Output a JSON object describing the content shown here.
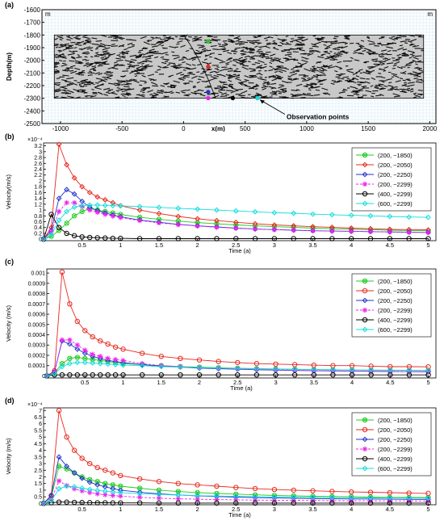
{
  "colors": {
    "green": "#22cc22",
    "red": "#e8281e",
    "blue": "#2233cc",
    "magenta": "#ee22ee",
    "black": "#000000",
    "cyan": "#11dddd",
    "grid": "#cfe8f4",
    "frame": "#000000"
  },
  "panel_a": {
    "label": "(a)",
    "ylabel": "Depth(m)",
    "xlabel": "x(m)",
    "unit_top_left": "m",
    "unit_top_right": "m",
    "annotation": "Observation points",
    "xlim": [
      -1150,
      2050
    ],
    "ylim": [
      -2500,
      -1600
    ],
    "xticks": [
      "-1000",
      "-500",
      "0",
      "500",
      "1000",
      "1500",
      "2000"
    ],
    "xtick_values": [
      -1000,
      -500,
      0,
      500,
      1000,
      1500,
      2000
    ],
    "yticks": [
      "-1600",
      "-1700",
      "-1800",
      "-1900",
      "-2000",
      "-2100",
      "-2200",
      "-2300",
      "-2400",
      "-2500"
    ],
    "ytick_values": [
      -1600,
      -1700,
      -1800,
      -1900,
      -2000,
      -2100,
      -2200,
      -2300,
      -2400,
      -2500
    ],
    "fracture_zone": {
      "x": [
        -1050,
        1950
      ],
      "y": [
        -2300,
        -1800
      ]
    },
    "points": [
      {
        "x": 200,
        "y": -1850,
        "color": "#22cc22"
      },
      {
        "x": 200,
        "y": -2050,
        "color": "#e8281e"
      },
      {
        "x": 200,
        "y": -2250,
        "color": "#2233cc"
      },
      {
        "x": 200,
        "y": -2299,
        "color": "#ee22ee"
      },
      {
        "x": 400,
        "y": -2299,
        "color": "#000000"
      },
      {
        "x": 600,
        "y": -2299,
        "color": "#11dddd"
      }
    ]
  },
  "chart_data": [
    {
      "panel": "(b)",
      "type": "line",
      "ylabel": "Velocity(m/s)",
      "xlabel": "Time (a)",
      "scale_label": "×10⁻⁴",
      "xlim": [
        0,
        5.1
      ],
      "ylim": [
        -0.05,
        3.3
      ],
      "xticks": [
        "0.5",
        "1",
        "1.5",
        "2",
        "2.5",
        "3",
        "3.5",
        "4",
        "4.5",
        "5"
      ],
      "xtick_values": [
        0.5,
        1,
        1.5,
        2,
        2.5,
        3,
        3.5,
        4,
        4.5,
        5
      ],
      "yticks": [
        "0",
        "0.2",
        "0.4",
        "0.6",
        "0.8",
        "1",
        "1.2",
        "1.4",
        "1.6",
        "1.8",
        "2",
        "2.2",
        "2.4",
        "2.6",
        "2.8",
        "3",
        "3.2"
      ],
      "ytick_values": [
        0,
        0.2,
        0.4,
        0.6,
        0.8,
        1,
        1.2,
        1.4,
        1.6,
        1.8,
        2,
        2.2,
        2.4,
        2.6,
        2.8,
        3,
        3.2
      ],
      "x": [
        0.0,
        0.1,
        0.2,
        0.3,
        0.4,
        0.5,
        0.6,
        0.7,
        0.8,
        0.9,
        1.0,
        1.25,
        1.5,
        1.75,
        2.0,
        2.25,
        2.5,
        2.75,
        3.0,
        3.25,
        3.5,
        3.75,
        4.0,
        4.25,
        4.5,
        4.75,
        5.0
      ],
      "legend_position": "top-right",
      "series": [
        {
          "name": "(200, −1850)",
          "color": "#22cc22",
          "marker": "circle-x",
          "dashed": false,
          "values": [
            0.0,
            0.1,
            0.3,
            0.55,
            0.8,
            0.95,
            1.05,
            1.0,
            0.95,
            0.9,
            0.85,
            0.75,
            0.68,
            0.62,
            0.57,
            0.53,
            0.49,
            0.46,
            0.43,
            0.41,
            0.38,
            0.36,
            0.34,
            0.33,
            0.31,
            0.3,
            0.29
          ]
        },
        {
          "name": "(200, −2050)",
          "color": "#e8281e",
          "marker": "diamond",
          "dashed": false,
          "values": [
            0.0,
            0.4,
            3.25,
            2.55,
            2.1,
            1.8,
            1.6,
            1.45,
            1.35,
            1.25,
            1.15,
            1.0,
            0.88,
            0.78,
            0.7,
            0.64,
            0.58,
            0.53,
            0.49,
            0.46,
            0.43,
            0.41,
            0.38,
            0.36,
            0.34,
            0.33,
            0.32
          ]
        },
        {
          "name": "(200, −2250)",
          "color": "#2233cc",
          "marker": "diamond",
          "dashed": false,
          "values": [
            0.0,
            0.3,
            1.4,
            1.7,
            1.55,
            1.3,
            1.1,
            0.98,
            0.9,
            0.83,
            0.77,
            0.66,
            0.58,
            0.51,
            0.46,
            0.42,
            0.38,
            0.35,
            0.33,
            0.31,
            0.29,
            0.28,
            0.27,
            0.26,
            0.25,
            0.24,
            0.23
          ]
        },
        {
          "name": "(200, −2299)",
          "color": "#ee22ee",
          "marker": "star",
          "dashed": true,
          "values": [
            0.0,
            0.25,
            0.95,
            1.25,
            1.25,
            1.12,
            1.0,
            0.92,
            0.85,
            0.79,
            0.74,
            0.64,
            0.56,
            0.5,
            0.45,
            0.41,
            0.38,
            0.35,
            0.33,
            0.31,
            0.29,
            0.28,
            0.27,
            0.26,
            0.25,
            0.24,
            0.23
          ]
        },
        {
          "name": "(400, −2299)",
          "color": "#000000",
          "marker": "circle",
          "dashed": false,
          "values": [
            0.0,
            0.85,
            0.4,
            0.2,
            0.12,
            0.08,
            0.06,
            0.05,
            0.04,
            0.03,
            0.03,
            0.02,
            0.02,
            0.02,
            0.02,
            0.02,
            0.02,
            0.02,
            0.02,
            0.02,
            0.02,
            0.02,
            0.02,
            0.02,
            0.02,
            0.02,
            0.02
          ]
        },
        {
          "name": "(600, −2299)",
          "color": "#11dddd",
          "marker": "diamond",
          "dashed": false,
          "values": [
            0.0,
            0.15,
            0.65,
            0.95,
            1.1,
            1.15,
            1.17,
            1.17,
            1.16,
            1.15,
            1.14,
            1.12,
            1.09,
            1.06,
            1.03,
            1.0,
            0.97,
            0.94,
            0.91,
            0.89,
            0.86,
            0.84,
            0.82,
            0.8,
            0.78,
            0.76,
            0.75
          ]
        }
      ]
    },
    {
      "panel": "(c)",
      "type": "line",
      "ylabel": "Velocity (m/s)",
      "xlabel": "Time (a)",
      "scale_label": "",
      "xlim": [
        0,
        5.1
      ],
      "ylim": [
        -2e-05,
        0.00104
      ],
      "xticks": [
        "0.5",
        "1",
        "1.5",
        "2",
        "2.5",
        "3",
        "3.5",
        "4",
        "4.5",
        "5"
      ],
      "xtick_values": [
        0.5,
        1,
        1.5,
        2,
        2.5,
        3,
        3.5,
        4,
        4.5,
        5
      ],
      "yticks": [
        "0",
        "0.0001",
        "0.0002",
        "0.0003",
        "0.0004",
        "0.0005",
        "0.0006",
        "0.0007",
        "0.0008",
        "0.0009",
        "0.001"
      ],
      "ytick_values": [
        0,
        0.0001,
        0.0002,
        0.0003,
        0.0004,
        0.0005,
        0.0006,
        0.0007,
        0.0008,
        0.0009,
        0.001
      ],
      "x": [
        0.0,
        0.1,
        0.2,
        0.3,
        0.4,
        0.5,
        0.6,
        0.7,
        0.8,
        0.9,
        1.0,
        1.25,
        1.5,
        1.75,
        2.0,
        2.25,
        2.5,
        2.75,
        3.0,
        3.25,
        3.5,
        3.75,
        4.0,
        4.25,
        4.5,
        4.75,
        5.0
      ],
      "legend_position": "top-right",
      "series": [
        {
          "name": "(200, −1850)",
          "color": "#22cc22",
          "marker": "circle-x",
          "dashed": false,
          "values": [
            0.0,
            3e-05,
            0.00012,
            0.00017,
            0.00018,
            0.00017,
            0.00016,
            0.00015,
            0.00014,
            0.00013,
            0.00012,
            0.00011,
            0.0001,
            9e-05,
            8.5e-05,
            8e-05,
            7.5e-05,
            7e-05,
            6.8e-05,
            6.5e-05,
            6.2e-05,
            6e-05,
            5.8e-05,
            5.6e-05,
            5.5e-05,
            5.4e-05,
            5.3e-05
          ]
        },
        {
          "name": "(200, −2050)",
          "color": "#e8281e",
          "marker": "circle",
          "dashed": false,
          "values": [
            0.0,
            5e-05,
            0.00101,
            0.0007,
            0.00053,
            0.00044,
            0.00038,
            0.00034,
            0.00031,
            0.00028,
            0.00026,
            0.00022,
            0.00019,
            0.00017,
            0.000155,
            0.00014,
            0.00013,
            0.00012,
            0.000115,
            0.00011,
            0.000105,
            0.0001,
            0.0001,
            9.5e-05,
            9e-05,
            9e-05,
            8.8e-05
          ]
        },
        {
          "name": "(200, −2250)",
          "color": "#2233cc",
          "marker": "diamond",
          "dashed": false,
          "values": [
            0.0,
            4e-05,
            0.00034,
            0.00031,
            0.00026,
            0.00022,
            0.00019,
            0.00017,
            0.00015,
            0.00014,
            0.00013,
            0.00011,
            9.5e-05,
            8.5e-05,
            7.5e-05,
            7e-05,
            6.5e-05,
            6e-05,
            5.6e-05,
            5.3e-05,
            5e-05,
            4.8e-05,
            4.6e-05,
            4.4e-05,
            4.3e-05,
            4.2e-05,
            4e-05
          ]
        },
        {
          "name": "(200, −2299)",
          "color": "#ee22ee",
          "marker": "star",
          "dashed": true,
          "values": [
            0.0,
            4e-05,
            0.00035,
            0.00035,
            0.0003,
            0.00025,
            0.00021,
            0.00019,
            0.00017,
            0.00016,
            0.00015,
            0.00012,
            0.0001,
            9e-05,
            8e-05,
            7.4e-05,
            6.8e-05,
            6.3e-05,
            5.9e-05,
            5.5e-05,
            5.2e-05,
            5e-05,
            4.8e-05,
            4.6e-05,
            4.4e-05,
            4.3e-05,
            4.2e-05
          ]
        },
        {
          "name": "(400, −2299)",
          "color": "#000000",
          "marker": "circle",
          "dashed": false,
          "values": [
            0.0,
            1e-05,
            1e-05,
            1e-05,
            1e-05,
            1e-05,
            1e-05,
            1e-05,
            1e-05,
            1e-05,
            1e-05,
            1e-05,
            1e-05,
            1e-05,
            1e-05,
            1e-05,
            1e-05,
            1e-05,
            1e-05,
            1e-05,
            1e-05,
            1e-05,
            1e-05,
            1e-05,
            1e-05,
            1e-05,
            1e-05
          ]
        },
        {
          "name": "(600, −2299)",
          "color": "#11dddd",
          "marker": "diamond",
          "dashed": false,
          "values": [
            0.0,
            2e-05,
            9e-05,
            0.00012,
            0.00013,
            0.00013,
            0.000125,
            0.00012,
            0.000115,
            0.00011,
            0.000105,
            0.0001,
            9e-05,
            8.5e-05,
            8e-05,
            7.6e-05,
            7.2e-05,
            6.9e-05,
            6.6e-05,
            6.4e-05,
            6.2e-05,
            6e-05,
            5.8e-05,
            5.7e-05,
            5.6e-05,
            5.5e-05,
            5.4e-05
          ]
        }
      ]
    },
    {
      "panel": "(d)",
      "type": "line",
      "ylabel": "Velocity (m/s)",
      "xlabel": "Time (a)",
      "scale_label": "×10⁻⁴",
      "xlim": [
        0,
        5.1
      ],
      "ylim": [
        -0.1,
        7.2
      ],
      "xticks": [
        "0.5",
        "1",
        "1.5",
        "2",
        "2.5",
        "3",
        "3.5",
        "4",
        "4.5",
        "5"
      ],
      "xtick_values": [
        0.5,
        1,
        1.5,
        2,
        2.5,
        3,
        3.5,
        4,
        4.5,
        5
      ],
      "yticks": [
        "0",
        "0.5",
        "1",
        "1.5",
        "2",
        "2.5",
        "3",
        "3.5",
        "4",
        "4.5",
        "5",
        "5.5",
        "6",
        "6.5",
        "7"
      ],
      "ytick_values": [
        0,
        0.5,
        1,
        1.5,
        2,
        2.5,
        3,
        3.5,
        4,
        4.5,
        5,
        5.5,
        6,
        6.5,
        7
      ],
      "x": [
        0.0,
        0.1,
        0.2,
        0.3,
        0.4,
        0.5,
        0.6,
        0.7,
        0.8,
        0.9,
        1.0,
        1.25,
        1.5,
        1.75,
        2.0,
        2.25,
        2.5,
        2.75,
        3.0,
        3.25,
        3.5,
        3.75,
        4.0,
        4.25,
        4.5,
        4.75,
        5.0
      ],
      "legend_position": "top-right",
      "series": [
        {
          "name": "(200, −1850)",
          "color": "#22cc22",
          "marker": "circle-x",
          "dashed": false,
          "values": [
            0.0,
            0.5,
            2.8,
            2.6,
            2.3,
            2.0,
            1.8,
            1.65,
            1.5,
            1.4,
            1.3,
            1.15,
            1.0,
            0.9,
            0.82,
            0.75,
            0.7,
            0.65,
            0.6,
            0.57,
            0.54,
            0.52,
            0.5,
            0.48,
            0.46,
            0.45,
            0.44
          ]
        },
        {
          "name": "(200, −2050)",
          "color": "#e8281e",
          "marker": "circle",
          "dashed": false,
          "values": [
            0.0,
            0.6,
            7.0,
            5.0,
            4.0,
            3.4,
            3.0,
            2.7,
            2.5,
            2.3,
            2.1,
            1.85,
            1.65,
            1.5,
            1.4,
            1.3,
            1.2,
            1.12,
            1.05,
            1.0,
            0.95,
            0.91,
            0.87,
            0.84,
            0.81,
            0.78,
            0.76
          ]
        },
        {
          "name": "(200, −2250)",
          "color": "#2233cc",
          "marker": "diamond",
          "dashed": false,
          "values": [
            0.0,
            0.6,
            3.5,
            2.8,
            2.3,
            1.9,
            1.6,
            1.4,
            1.25,
            1.12,
            1.0,
            0.85,
            0.73,
            0.64,
            0.57,
            0.52,
            0.48,
            0.44,
            0.41,
            0.39,
            0.37,
            0.35,
            0.34,
            0.33,
            0.32,
            0.31,
            0.3
          ]
        },
        {
          "name": "(200, −2299)",
          "color": "#ee22ee",
          "marker": "star",
          "dashed": true,
          "values": [
            0.0,
            0.3,
            1.7,
            1.35,
            1.1,
            0.95,
            0.82,
            0.72,
            0.65,
            0.6,
            0.55,
            0.46,
            0.4,
            0.35,
            0.32,
            0.29,
            0.27,
            0.25,
            0.24,
            0.23,
            0.22,
            0.21,
            0.2,
            0.2,
            0.19,
            0.19,
            0.18
          ]
        },
        {
          "name": "(400, −2299)",
          "color": "#000000",
          "marker": "circle",
          "dashed": false,
          "values": [
            0.0,
            0.05,
            0.1,
            0.1,
            0.08,
            0.07,
            0.06,
            0.05,
            0.05,
            0.04,
            0.04,
            0.04,
            0.03,
            0.03,
            0.03,
            0.03,
            0.03,
            0.03,
            0.03,
            0.03,
            0.03,
            0.03,
            0.03,
            0.03,
            0.03,
            0.03,
            0.03
          ]
        },
        {
          "name": "(600, −2299)",
          "color": "#11dddd",
          "marker": "diamond",
          "dashed": false,
          "values": [
            0.0,
            0.2,
            1.1,
            1.3,
            1.25,
            1.15,
            1.05,
            0.98,
            0.92,
            0.87,
            0.82,
            0.74,
            0.68,
            0.63,
            0.59,
            0.56,
            0.53,
            0.5,
            0.48,
            0.46,
            0.45,
            0.44,
            0.43,
            0.42,
            0.41,
            0.4,
            0.39
          ]
        }
      ]
    }
  ]
}
